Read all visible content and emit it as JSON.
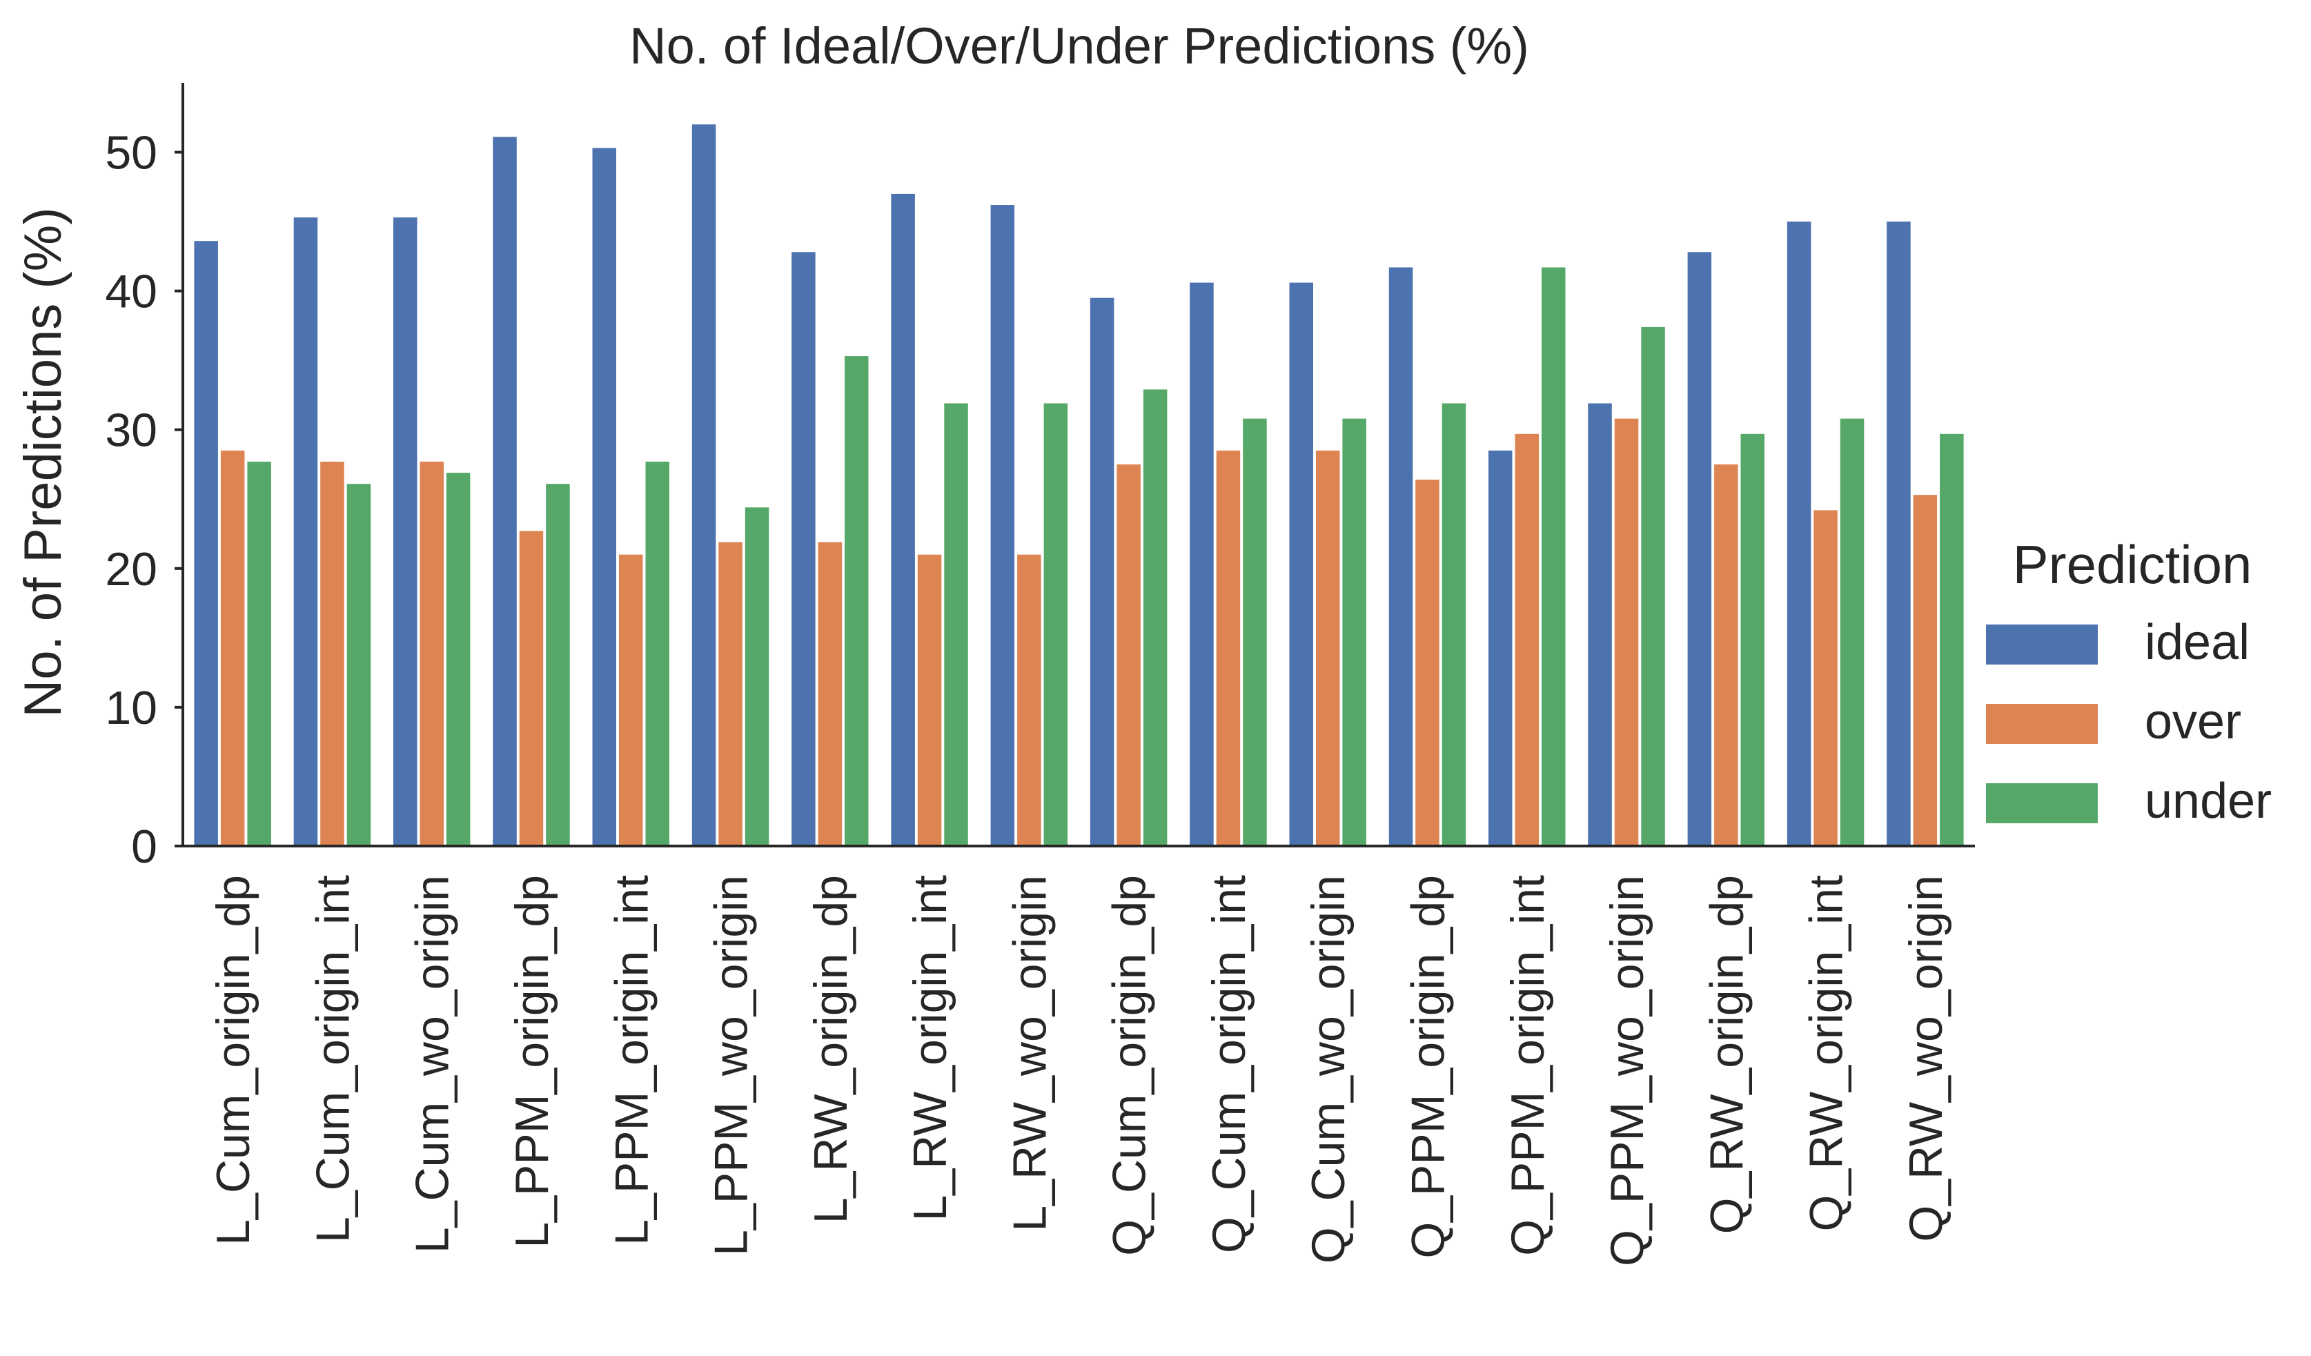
{
  "chart_data": {
    "type": "bar",
    "title": "No. of Ideal/Over/Under Predictions (%)",
    "xlabel": "",
    "ylabel": "No. of Predictions (%)",
    "ylim": [
      0,
      55
    ],
    "yticks": [
      "0",
      "10",
      "20",
      "30",
      "40",
      "50"
    ],
    "grid": false,
    "legend": {
      "title": "Prediction",
      "placement": "center-right-outside"
    },
    "categories": [
      "L_Cum_origin_dp",
      "L_Cum_origin_int",
      "L_Cum_wo_origin",
      "L_PPM_origin_dp",
      "L_PPM_origin_int",
      "L_PPM_wo_origin",
      "L_RW_origin_dp",
      "L_RW_origin_int",
      "L_RW_wo_origin",
      "Q_Cum_origin_dp",
      "Q_Cum_origin_int",
      "Q_Cum_wo_origin",
      "Q_PPM_origin_dp",
      "Q_PPM_origin_int",
      "Q_PPM_wo_origin",
      "Q_RW_origin_dp",
      "Q_RW_origin_int",
      "Q_RW_wo_origin"
    ],
    "series": [
      {
        "name": "ideal",
        "color": "#4c72b0",
        "values": [
          43.6,
          45.3,
          45.3,
          51.1,
          50.3,
          52.0,
          42.8,
          47.0,
          46.2,
          39.5,
          40.6,
          40.6,
          41.7,
          28.5,
          31.9,
          42.8,
          45.0,
          45.0
        ]
      },
      {
        "name": "over",
        "color": "#dd8452",
        "values": [
          28.5,
          27.7,
          27.7,
          22.7,
          21.0,
          21.9,
          21.9,
          21.0,
          21.0,
          27.5,
          28.5,
          28.5,
          26.4,
          29.7,
          30.8,
          27.5,
          24.2,
          25.3
        ]
      },
      {
        "name": "under",
        "color": "#55a868",
        "values": [
          27.7,
          26.1,
          26.9,
          26.1,
          27.7,
          24.4,
          35.3,
          31.9,
          31.9,
          32.9,
          30.8,
          30.8,
          31.9,
          41.7,
          37.4,
          29.7,
          30.8,
          29.7
        ]
      }
    ]
  }
}
